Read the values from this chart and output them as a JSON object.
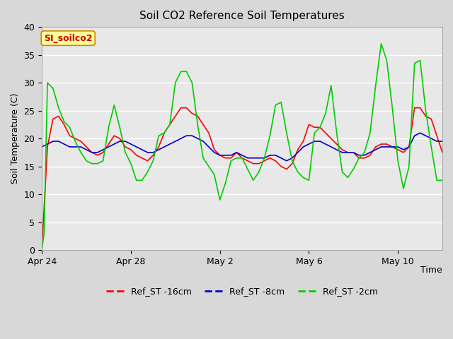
{
  "title": "Soil CO2 Reference Soil Temperatures",
  "xlabel": "Time",
  "ylabel": "Soil Temperature (C)",
  "ylim": [
    0,
    40
  ],
  "xlim_days": [
    0,
    18
  ],
  "x_tick_labels": [
    "Apr 24",
    "Apr 28",
    "May 2",
    "May 6",
    "May 10"
  ],
  "x_tick_positions": [
    0,
    4,
    8,
    12,
    16
  ],
  "plot_bg_color": "#e8e8e8",
  "fig_bg_color": "#d8d8d8",
  "label_box_text": "SI_soilco2",
  "label_box_facecolor": "#ffff99",
  "label_box_edgecolor": "#cc8800",
  "label_text_color": "#cc0000",
  "legend_labels": [
    "Ref_ST -16cm",
    "Ref_ST -8cm",
    "Ref_ST -2cm"
  ],
  "line_colors": [
    "#ff0000",
    "#0000cc",
    "#00cc00"
  ],
  "line_width": 1.2,
  "ref16_x": [
    0,
    0.25,
    0.5,
    0.75,
    1.0,
    1.25,
    1.5,
    1.75,
    2.0,
    2.25,
    2.5,
    2.75,
    3.0,
    3.25,
    3.5,
    3.75,
    4.0,
    4.25,
    4.5,
    4.75,
    5.0,
    5.25,
    5.5,
    5.75,
    6.0,
    6.25,
    6.5,
    6.75,
    7.0,
    7.25,
    7.5,
    7.75,
    8.0,
    8.25,
    8.5,
    8.75,
    9.0,
    9.25,
    9.5,
    9.75,
    10.0,
    10.25,
    10.5,
    10.75,
    11.0,
    11.25,
    11.5,
    11.75,
    12.0,
    12.25,
    12.5,
    12.75,
    13.0,
    13.25,
    13.5,
    13.75,
    14.0,
    14.25,
    14.5,
    14.75,
    15.0,
    15.25,
    15.5,
    15.75,
    16.0,
    16.25,
    16.5,
    16.75,
    17.0,
    17.25,
    17.5,
    17.75,
    18.0
  ],
  "ref16_y": [
    0.1,
    18.5,
    23.5,
    24.0,
    22.5,
    20.5,
    20.0,
    19.5,
    18.5,
    17.5,
    17.0,
    17.5,
    19.0,
    20.5,
    20.0,
    18.5,
    18.0,
    17.0,
    16.5,
    16.0,
    17.0,
    18.5,
    21.0,
    22.5,
    24.0,
    25.5,
    25.5,
    24.5,
    24.0,
    22.5,
    21.0,
    18.0,
    17.0,
    16.5,
    16.5,
    17.5,
    16.5,
    16.0,
    15.5,
    15.5,
    16.0,
    16.5,
    16.0,
    15.0,
    14.5,
    15.5,
    18.0,
    19.5,
    22.5,
    22.0,
    22.0,
    21.0,
    20.0,
    19.0,
    18.0,
    17.5,
    17.5,
    16.5,
    16.5,
    17.0,
    18.5,
    19.0,
    19.0,
    18.5,
    18.0,
    17.5,
    18.5,
    25.5,
    25.5,
    24.0,
    23.5,
    20.5,
    17.5
  ],
  "ref8_x": [
    0,
    0.25,
    0.5,
    0.75,
    1.0,
    1.25,
    1.5,
    1.75,
    2.0,
    2.25,
    2.5,
    2.75,
    3.0,
    3.25,
    3.5,
    3.75,
    4.0,
    4.25,
    4.5,
    4.75,
    5.0,
    5.25,
    5.5,
    5.75,
    6.0,
    6.25,
    6.5,
    6.75,
    7.0,
    7.25,
    7.5,
    7.75,
    8.0,
    8.25,
    8.5,
    8.75,
    9.0,
    9.25,
    9.5,
    9.75,
    10.0,
    10.25,
    10.5,
    10.75,
    11.0,
    11.25,
    11.5,
    11.75,
    12.0,
    12.25,
    12.5,
    12.75,
    13.0,
    13.25,
    13.5,
    13.75,
    14.0,
    14.25,
    14.5,
    14.75,
    15.0,
    15.25,
    15.5,
    15.75,
    16.0,
    16.25,
    16.5,
    16.75,
    17.0,
    17.25,
    17.5,
    17.75,
    18.0
  ],
  "ref8_y": [
    18.5,
    19.0,
    19.5,
    19.5,
    19.0,
    18.5,
    18.5,
    18.5,
    18.0,
    17.5,
    17.5,
    18.0,
    18.5,
    19.0,
    19.5,
    19.5,
    19.0,
    18.5,
    18.0,
    17.5,
    17.5,
    18.0,
    18.5,
    19.0,
    19.5,
    20.0,
    20.5,
    20.5,
    20.0,
    19.5,
    18.5,
    17.5,
    17.0,
    17.0,
    17.0,
    17.5,
    17.0,
    16.5,
    16.5,
    16.5,
    16.5,
    17.0,
    17.0,
    16.5,
    16.0,
    16.5,
    17.5,
    18.5,
    19.0,
    19.5,
    19.5,
    19.0,
    18.5,
    18.0,
    17.5,
    17.5,
    17.5,
    17.0,
    17.0,
    17.5,
    18.0,
    18.5,
    18.5,
    18.5,
    18.5,
    18.0,
    18.5,
    20.5,
    21.0,
    20.5,
    20.0,
    19.5,
    19.5
  ],
  "ref2_x": [
    0,
    0.1,
    0.25,
    0.5,
    0.75,
    1.0,
    1.25,
    1.5,
    1.75,
    2.0,
    2.25,
    2.5,
    2.75,
    3.0,
    3.25,
    3.5,
    3.75,
    4.0,
    4.25,
    4.5,
    4.75,
    5.0,
    5.25,
    5.5,
    5.75,
    6.0,
    6.25,
    6.5,
    6.75,
    7.0,
    7.25,
    7.5,
    7.75,
    8.0,
    8.25,
    8.5,
    8.75,
    9.0,
    9.25,
    9.5,
    9.75,
    10.0,
    10.25,
    10.5,
    10.75,
    11.0,
    11.25,
    11.5,
    11.75,
    12.0,
    12.25,
    12.5,
    12.75,
    13.0,
    13.25,
    13.5,
    13.75,
    14.0,
    14.25,
    14.5,
    14.75,
    15.0,
    15.25,
    15.5,
    15.75,
    16.0,
    16.25,
    16.5,
    16.75,
    17.0,
    17.25,
    17.5,
    17.75,
    18.0
  ],
  "ref2_y": [
    0.0,
    3.0,
    30.0,
    29.0,
    25.5,
    23.0,
    22.0,
    19.5,
    17.5,
    16.0,
    15.5,
    15.5,
    16.0,
    22.0,
    26.0,
    22.0,
    17.5,
    15.5,
    12.5,
    12.5,
    14.0,
    16.0,
    20.5,
    21.0,
    22.5,
    30.0,
    32.0,
    32.0,
    30.0,
    22.5,
    16.5,
    15.0,
    13.5,
    9.0,
    12.0,
    16.0,
    16.5,
    16.5,
    14.5,
    12.5,
    14.0,
    16.5,
    20.5,
    26.0,
    26.5,
    21.0,
    16.0,
    14.0,
    13.0,
    12.5,
    21.0,
    22.0,
    24.5,
    29.5,
    21.0,
    14.0,
    13.0,
    14.5,
    16.5,
    17.5,
    21.0,
    29.5,
    37.0,
    34.0,
    25.5,
    16.0,
    11.0,
    15.0,
    33.5,
    34.0,
    25.0,
    18.5,
    12.5,
    12.5
  ]
}
